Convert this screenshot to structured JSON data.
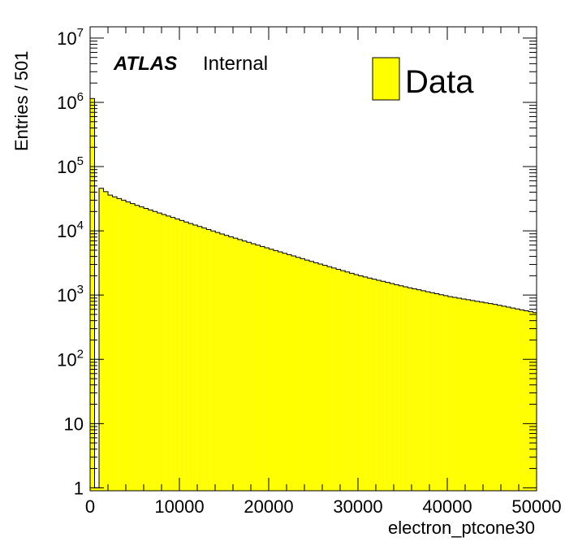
{
  "chart_data": {
    "type": "bar",
    "style": "filled-histogram",
    "xlabel": "electron_ptcone30",
    "ylabel": "Entries / 501",
    "yscale": "log",
    "xlim": [
      0,
      50000
    ],
    "ylim": [
      0.9,
      15000000
    ],
    "bin_width": 501,
    "fill_color": "#ffff00",
    "line_color": "#000000",
    "x_ticks": [
      "0",
      "10000",
      "20000",
      "30000",
      "40000",
      "50000"
    ],
    "y_ticks": [
      {
        "value": 1,
        "base": "1",
        "exp": ""
      },
      {
        "value": 10,
        "base": "10",
        "exp": ""
      },
      {
        "value": 100,
        "base": "10",
        "exp": "2"
      },
      {
        "value": 1000,
        "base": "10",
        "exp": "3"
      },
      {
        "value": 10000,
        "base": "10",
        "exp": "4"
      },
      {
        "value": 100000,
        "base": "10",
        "exp": "5"
      },
      {
        "value": 1000000,
        "base": "10",
        "exp": "6"
      },
      {
        "value": 10000000,
        "base": "10",
        "exp": "7"
      }
    ],
    "legend": {
      "label": "Data",
      "position": "top-right"
    },
    "atlas_label": {
      "bold": "ATLAS",
      "text": "Internal"
    },
    "anchors": [
      [
        0,
        1150000
      ],
      [
        501,
        1
      ],
      [
        1002,
        46000
      ],
      [
        2004,
        36000
      ],
      [
        5000,
        25000
      ],
      [
        10000,
        14500
      ],
      [
        15000,
        8500
      ],
      [
        20000,
        5200
      ],
      [
        25000,
        3200
      ],
      [
        30000,
        2000
      ],
      [
        35000,
        1350
      ],
      [
        40000,
        950
      ],
      [
        45000,
        720
      ],
      [
        50000,
        520
      ]
    ]
  }
}
